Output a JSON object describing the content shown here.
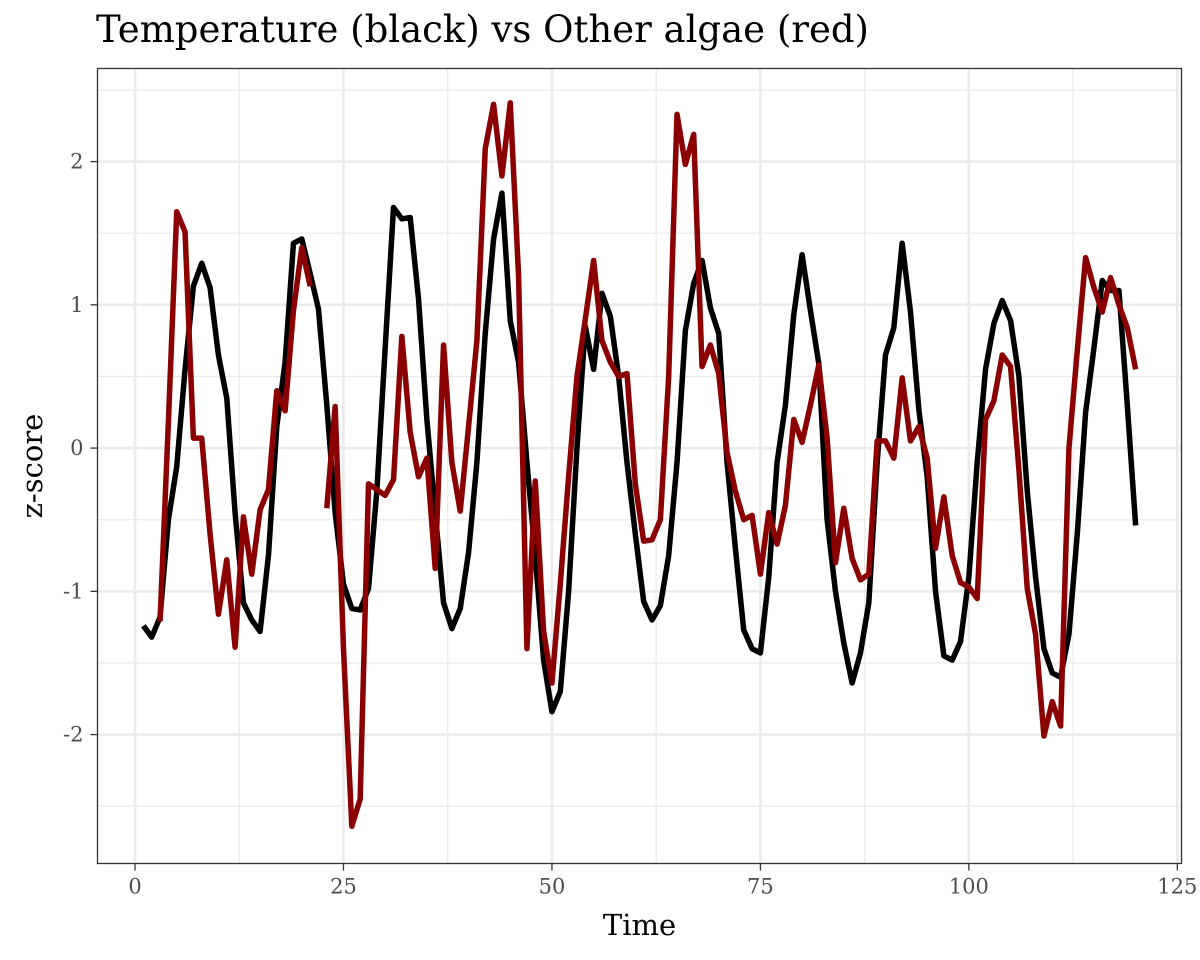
{
  "chart_data": {
    "type": "line",
    "title": "Temperature (black) vs Other algae (red)",
    "xlabel": "Time",
    "ylabel": "z-score",
    "xlim": [
      -4.5,
      125.5
    ],
    "ylim": [
      -2.9,
      2.65
    ],
    "x_ticks": [
      0,
      25,
      50,
      75,
      100,
      125
    ],
    "y_ticks": [
      -2,
      -1,
      0,
      1,
      2
    ],
    "grid": true,
    "theme": "bw",
    "series": [
      {
        "color": "#000000",
        "x": [
          1,
          2,
          3,
          4,
          5,
          6,
          7,
          8,
          9,
          10,
          11,
          12,
          13,
          14,
          15,
          16,
          17,
          18,
          19,
          20,
          21,
          22,
          23,
          24,
          25,
          26,
          27,
          28,
          29,
          30,
          31,
          32,
          33,
          34,
          35,
          36,
          37,
          38,
          39,
          40,
          41,
          42,
          43,
          44,
          45,
          46,
          47,
          48,
          49,
          50,
          51,
          52,
          53,
          54,
          55,
          56,
          57,
          58,
          59,
          60,
          61,
          62,
          63,
          64,
          65,
          66,
          67,
          68,
          69,
          70,
          71,
          72,
          73,
          74,
          75,
          76,
          77,
          78,
          79,
          80,
          81,
          82,
          83,
          84,
          85,
          86,
          87,
          88,
          89,
          90,
          91,
          92,
          93,
          94,
          95,
          96,
          97,
          98,
          99,
          100,
          101,
          102,
          103,
          104,
          105,
          106,
          107,
          108,
          109,
          110,
          111,
          112,
          113,
          114,
          115,
          116,
          117,
          118,
          119,
          120
        ],
        "y": [
          -1.24,
          -1.32,
          -1.18,
          -0.5,
          -0.13,
          0.55,
          1.13,
          1.29,
          1.12,
          0.65,
          0.35,
          -0.45,
          -1.08,
          -1.2,
          -1.28,
          -0.75,
          0.15,
          0.6,
          1.43,
          1.46,
          1.22,
          0.97,
          0.3,
          -0.45,
          -0.95,
          -1.12,
          -1.13,
          -0.98,
          -0.3,
          0.7,
          1.68,
          1.6,
          1.61,
          1.04,
          0.2,
          -0.45,
          -1.08,
          -1.26,
          -1.12,
          -0.73,
          -0.1,
          0.8,
          1.46,
          1.78,
          0.89,
          0.6,
          -0.1,
          -0.75,
          -1.48,
          -1.84,
          -1.7,
          -1.0,
          0.0,
          0.85,
          0.55,
          1.08,
          0.92,
          0.5,
          -0.1,
          -0.6,
          -1.07,
          -1.2,
          -1.1,
          -0.75,
          -0.1,
          0.82,
          1.15,
          1.31,
          0.98,
          0.8,
          -0.1,
          -0.7,
          -1.27,
          -1.4,
          -1.43,
          -0.9,
          -0.1,
          0.3,
          0.93,
          1.35,
          0.96,
          0.59,
          -0.5,
          -1.0,
          -1.36,
          -1.64,
          -1.43,
          -1.08,
          -0.1,
          0.65,
          0.84,
          1.43,
          0.95,
          0.27,
          -0.2,
          -1.0,
          -1.45,
          -1.48,
          -1.35,
          -0.9,
          -0.1,
          0.55,
          0.87,
          1.03,
          0.89,
          0.5,
          -0.3,
          -0.9,
          -1.4,
          -1.57,
          -1.6,
          -1.3,
          -0.6,
          0.25,
          0.7,
          1.17,
          1.1,
          1.1,
          0.3,
          -0.54
        ]
      },
      {
        "color": "#8b0000",
        "x": [
          3,
          4,
          5,
          6,
          7,
          8,
          9,
          10,
          11,
          12,
          13,
          14,
          15,
          16,
          17,
          18,
          19,
          20,
          21,
          null,
          23,
          24,
          25,
          26,
          27,
          28,
          29,
          30,
          31,
          32,
          33,
          34,
          35,
          36,
          37,
          38,
          39,
          40,
          41,
          42,
          43,
          44,
          45,
          46,
          47,
          48,
          49,
          50,
          51,
          52,
          53,
          54,
          55,
          56,
          57,
          58,
          59,
          60,
          61,
          62,
          63,
          64,
          65,
          66,
          67,
          68,
          69,
          70,
          71,
          72,
          73,
          74,
          75,
          76,
          77,
          78,
          79,
          80,
          81,
          82,
          83,
          84,
          85,
          86,
          87,
          88,
          89,
          90,
          91,
          92,
          93,
          94,
          95,
          96,
          97,
          98,
          99,
          100,
          101,
          102,
          103,
          104,
          105,
          106,
          107,
          108,
          109,
          110,
          111,
          112,
          113,
          114,
          115,
          116,
          117,
          118,
          119,
          120
        ],
        "y": [
          -1.21,
          0.18,
          1.65,
          1.51,
          0.07,
          0.07,
          -0.6,
          -1.16,
          -0.78,
          -1.39,
          -0.48,
          -0.88,
          -0.43,
          -0.29,
          0.4,
          0.26,
          0.96,
          1.4,
          1.13,
          null,
          -0.42,
          0.29,
          -1.4,
          -2.64,
          -2.45,
          -0.25,
          -0.29,
          -0.33,
          -0.22,
          0.78,
          0.11,
          -0.2,
          -0.07,
          -0.84,
          0.72,
          -0.1,
          -0.44,
          0.15,
          0.75,
          2.09,
          2.4,
          1.9,
          2.41,
          1.2,
          -1.4,
          -0.23,
          -1.28,
          -1.64,
          -0.95,
          -0.2,
          0.5,
          0.9,
          1.31,
          0.75,
          0.6,
          0.5,
          0.52,
          -0.25,
          -0.65,
          -0.64,
          -0.5,
          0.5,
          2.33,
          1.98,
          2.19,
          0.57,
          0.72,
          0.52,
          -0.03,
          -0.3,
          -0.5,
          -0.47,
          -0.88,
          -0.45,
          -0.67,
          -0.4,
          0.2,
          0.04,
          0.3,
          0.58,
          0.07,
          -0.8,
          -0.42,
          -0.77,
          -0.92,
          -0.88,
          0.05,
          0.05,
          -0.07,
          0.49,
          0.05,
          0.15,
          -0.07,
          -0.7,
          -0.34,
          -0.75,
          -0.94,
          -0.97,
          -1.05,
          0.2,
          0.33,
          0.65,
          0.57,
          -0.15,
          -0.98,
          -1.3,
          -2.01,
          -1.77,
          -1.94,
          0.0,
          0.68,
          1.33,
          1.12,
          0.95,
          1.19,
          1.0,
          0.84,
          0.55
        ]
      }
    ]
  }
}
